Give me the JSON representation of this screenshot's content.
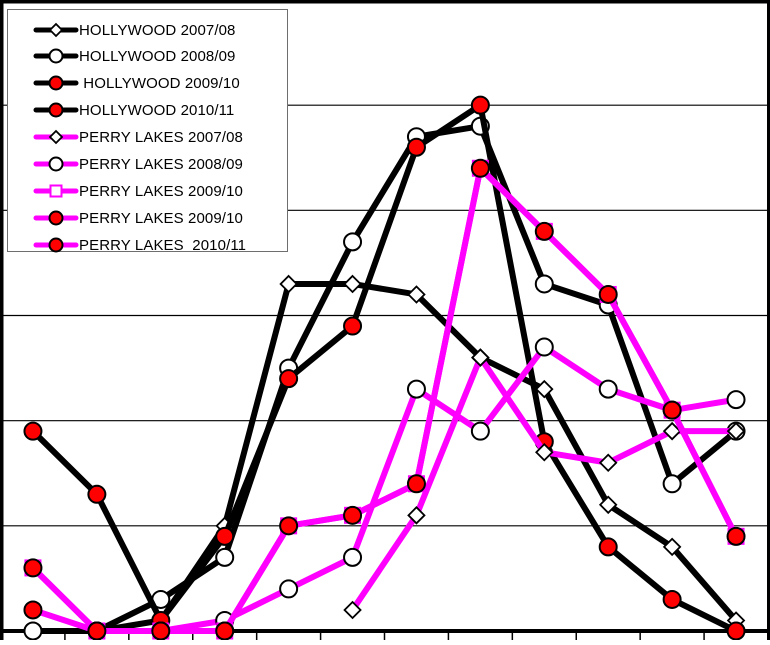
{
  "chart_data": {
    "type": "line",
    "title": "",
    "xlabel": "",
    "ylabel": "",
    "x": [
      1,
      2,
      3,
      4,
      5,
      6,
      7,
      8,
      9,
      10,
      11,
      12
    ],
    "ylim": [
      0,
      6
    ],
    "grid": true,
    "legend_position": "upper-left-inside",
    "series": [
      {
        "name": "HOLLYWOOD 2007/08",
        "line_color": "#000000",
        "marker": "diamond",
        "marker_fill": "#ffffff",
        "values": [
          null,
          0,
          0.1,
          1.0,
          3.3,
          3.3,
          3.2,
          2.6,
          2.3,
          1.2,
          0.8,
          0.1
        ]
      },
      {
        "name": "HOLLYWOOD 2008/09",
        "line_color": "#000000",
        "marker": "circle",
        "marker_fill": "#ffffff",
        "values": [
          0,
          0,
          0.3,
          0.7,
          2.5,
          3.7,
          4.7,
          4.8,
          3.3,
          3.1,
          1.4,
          1.9
        ]
      },
      {
        "name": " HOLLYWOOD 2009/10",
        "line_color": "#000000",
        "marker": "circle",
        "marker_fill": "#ff0000",
        "values": [
          1.9,
          1.3,
          0.1,
          0.9,
          2.4,
          2.9,
          4.6,
          5.0,
          1.8,
          0.8,
          0.3,
          0
        ]
      },
      {
        "name": "HOLLYWOOD 2010/11",
        "line_color": "#000000",
        "marker": "circle",
        "marker_fill": "#ff0000",
        "values": [
          null,
          0,
          0,
          null,
          null,
          null,
          null,
          null,
          null,
          null,
          null,
          null
        ]
      },
      {
        "name": "PERRY LAKES 2007/08",
        "line_color": "#ff00ff",
        "marker": "diamond",
        "marker_fill": "#ffffff",
        "values": [
          null,
          null,
          null,
          null,
          null,
          0.2,
          1.1,
          2.6,
          1.7,
          1.6,
          1.9,
          1.9
        ]
      },
      {
        "name": "PERRY LAKES 2008/09",
        "line_color": "#ff00ff",
        "marker": "circle",
        "marker_fill": "#ffffff",
        "values": [
          null,
          0,
          0,
          0.1,
          0.4,
          0.7,
          2.3,
          1.9,
          2.7,
          2.3,
          2.1,
          2.2
        ]
      },
      {
        "name": "PERRY LAKES 2009/10",
        "line_color": "#ff00ff",
        "marker": "square",
        "marker_fill": "#ffffff",
        "values": [
          0.6,
          0,
          0,
          0,
          1.0,
          1.1,
          1.4,
          4.4,
          3.8,
          3.2,
          2.1,
          0.9
        ]
      },
      {
        "name": "PERRY LAKES 2009/10",
        "line_color": "#ff00ff",
        "marker": "circle",
        "marker_fill": "#ff0000",
        "values": [
          0.6,
          0,
          0,
          0,
          1.0,
          1.1,
          1.4,
          4.4,
          3.8,
          3.2,
          2.1,
          0.9
        ]
      },
      {
        "name": "PERRY LAKES  2010/11",
        "line_color": "#ff00ff",
        "marker": "circle",
        "marker_fill": "#ff0000",
        "values": [
          0.2,
          0,
          0,
          0,
          null,
          null,
          null,
          null,
          null,
          null,
          null,
          null
        ]
      }
    ]
  },
  "legend": {
    "items": [
      {
        "label": "HOLLYWOOD 2007/08"
      },
      {
        "label": "HOLLYWOOD 2008/09"
      },
      {
        "label": " HOLLYWOOD 2009/10"
      },
      {
        "label": "HOLLYWOOD 2010/11"
      },
      {
        "label": "PERRY LAKES 2007/08"
      },
      {
        "label": "PERRY LAKES 2008/09"
      },
      {
        "label": "PERRY LAKES 2009/10"
      },
      {
        "label": "PERRY LAKES 2009/10"
      },
      {
        "label": "PERRY LAKES  2010/11"
      }
    ]
  },
  "colors": {
    "hollywood_line": "#000000",
    "perry_lakes_line": "#ff00ff",
    "marker_red": "#ff0000",
    "marker_white": "#ffffff",
    "gridline": "#000000",
    "axis": "#000000"
  }
}
